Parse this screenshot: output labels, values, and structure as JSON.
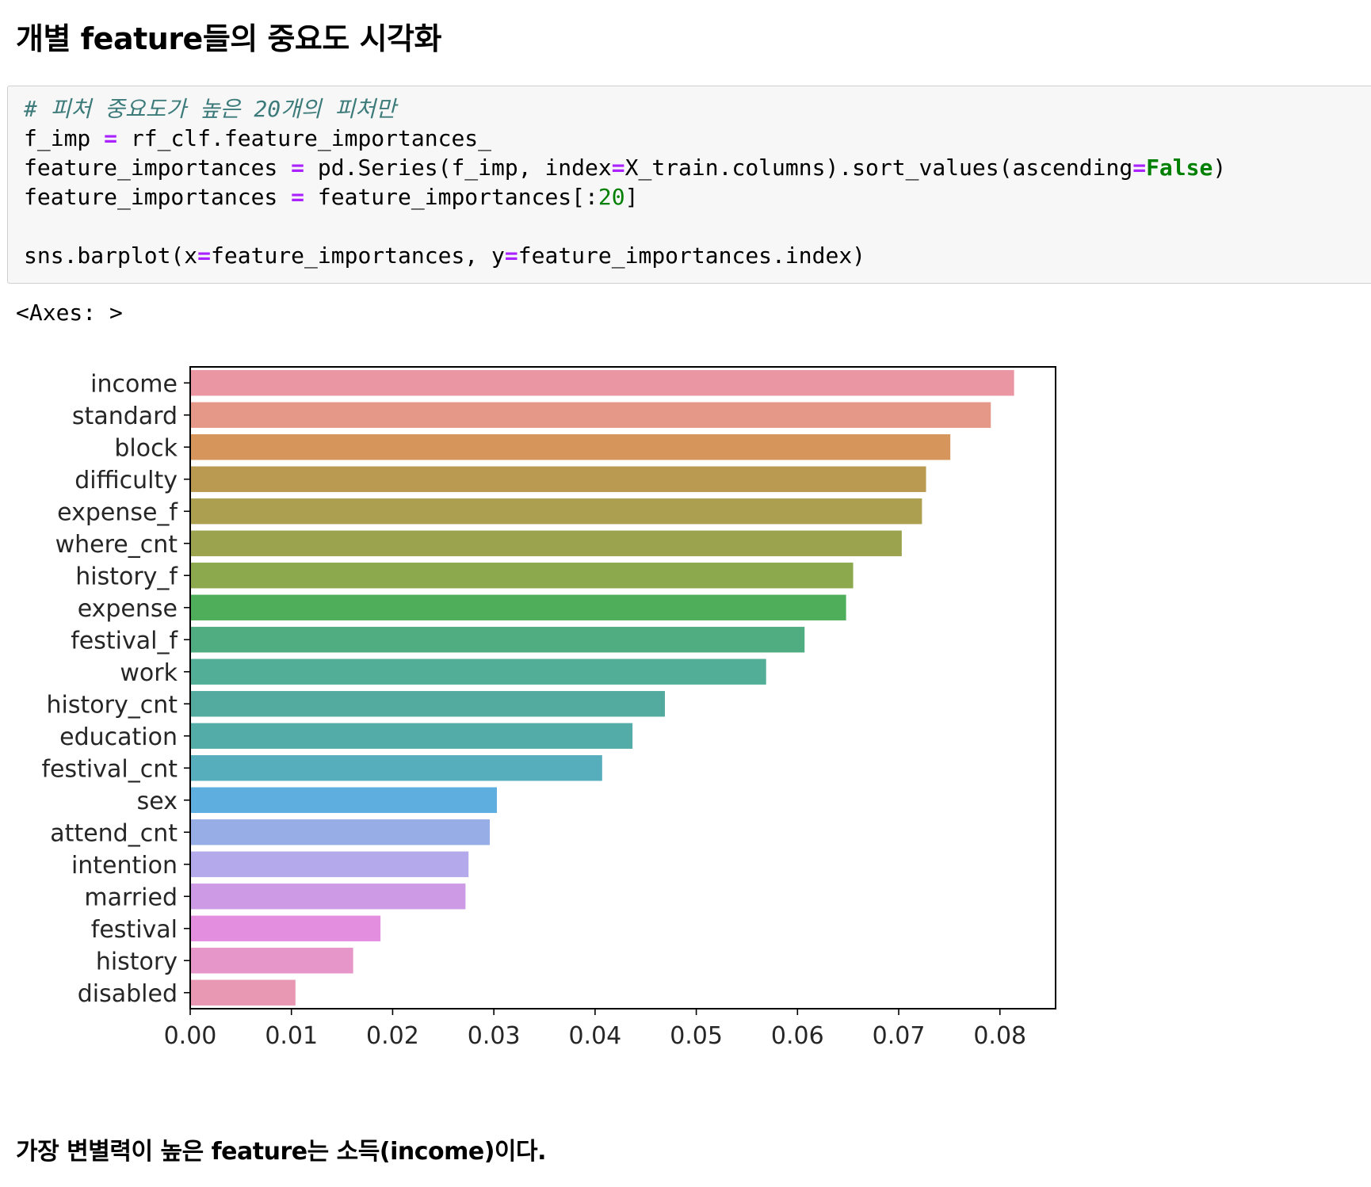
{
  "heading": "개별 feature들의 중요도 시각화",
  "code": {
    "comment": "# 피처 중요도가 높은 20개의 피처만",
    "line2_a": "f_imp ",
    "line2_op": "=",
    "line2_b": " rf_clf.feature_importances_",
    "line3_a": "feature_importances ",
    "line3_op1": "=",
    "line3_b": " pd.Series(f_imp, index",
    "line3_op2": "=",
    "line3_c": "X_train.columns).sort_values(ascending",
    "line3_op3": "=",
    "line3_kw": "False",
    "line3_d": ")",
    "line4_a": "feature_importances ",
    "line4_op": "=",
    "line4_b": " feature_importances[:",
    "line4_num": "20",
    "line4_c": "]",
    "line6_a": "sns.barplot(x",
    "line6_op1": "=",
    "line6_b": "feature_importances, y",
    "line6_op2": "=",
    "line6_c": "feature_importances.index)"
  },
  "output_text": "<Axes: >",
  "chart_data": {
    "type": "bar",
    "orientation": "horizontal",
    "categories": [
      "income",
      "standard",
      "block",
      "difficulty",
      "expense_f",
      "where_cnt",
      "history_f",
      "expense",
      "festival_f",
      "work",
      "history_cnt",
      "education",
      "festival_cnt",
      "sex",
      "attend_cnt",
      "intention",
      "married",
      "festival",
      "history",
      "disabled"
    ],
    "values": [
      0.0814,
      0.0791,
      0.0751,
      0.0727,
      0.0723,
      0.0703,
      0.0655,
      0.0648,
      0.0607,
      0.0569,
      0.0469,
      0.0437,
      0.0407,
      0.0303,
      0.0296,
      0.0275,
      0.0272,
      0.0188,
      0.0161,
      0.0104
    ],
    "colors": [
      "#ea96a3",
      "#e59888",
      "#d6955a",
      "#b99a50",
      "#aca050",
      "#9ca34f",
      "#8ca94e",
      "#4fae59",
      "#50ad81",
      "#52ae96",
      "#53ab9f",
      "#54aca9",
      "#56aebd",
      "#5eaedf",
      "#97ade6",
      "#b4a9ea",
      "#cd9be5",
      "#e48ee0",
      "#e696c9",
      "#e898b2"
    ],
    "xlim": [
      0,
      0.0855
    ],
    "xticks": [
      "0.00",
      "0.01",
      "0.02",
      "0.03",
      "0.04",
      "0.05",
      "0.06",
      "0.07",
      "0.08"
    ],
    "xtick_values": [
      0,
      0.01,
      0.02,
      0.03,
      0.04,
      0.05,
      0.06,
      0.07,
      0.08
    ],
    "xlabel": "",
    "ylabel": "",
    "title": "",
    "grid": false,
    "legend": "none"
  },
  "footer": "가장 변별력이 높은 feature는 소득(income)이다."
}
